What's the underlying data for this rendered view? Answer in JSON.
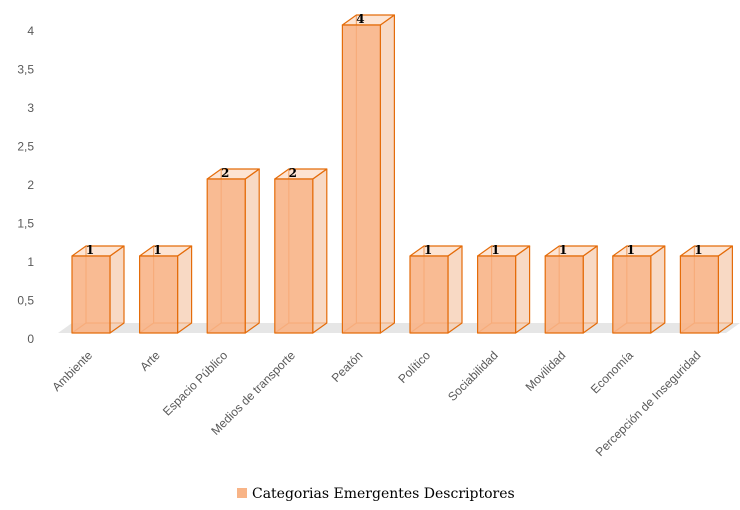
{
  "chart_data": {
    "type": "bar",
    "style": "3d-column",
    "categories": [
      "Ambiente",
      "Arte",
      "Espacio Público",
      "Medios de transporte",
      "Peatón",
      "Político",
      "Sociabilidad",
      "Movilidad",
      "Economía",
      "Percepción de Inseguridad"
    ],
    "series": [
      {
        "name": "Categorias Emergentes Descriptores",
        "values": [
          1,
          1,
          2,
          2,
          4,
          1,
          1,
          1,
          1,
          1
        ]
      }
    ],
    "data_labels": [
      "1",
      "1",
      "2",
      "2",
      "4",
      "1",
      "1",
      "1",
      "1",
      "1"
    ],
    "y_ticks": [
      "0",
      "0,5",
      "1",
      "1,5",
      "2",
      "2,5",
      "3",
      "3,5",
      "4"
    ],
    "ylim": [
      0,
      4
    ],
    "grid": false,
    "legend": "bottom",
    "colors": {
      "bar_front": "#F8B487",
      "bar_side": "#F5CCB0",
      "bar_top": "#FBD2B6",
      "bar_edge": "#E46C0A",
      "floor": "#E6E6E6",
      "legend_swatch": "#F8B487"
    }
  }
}
